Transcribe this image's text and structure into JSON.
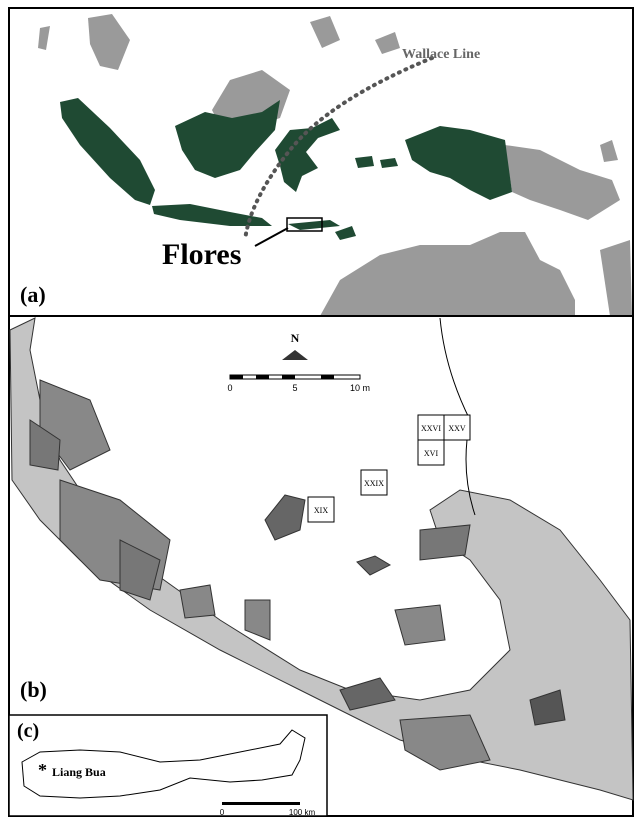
{
  "panel_a": {
    "label": "(a)",
    "wallace_line": "Wallace Line",
    "flores": "Flores"
  },
  "panel_b": {
    "label": "(b)",
    "north": "N",
    "scale_ticks": [
      "0",
      "5",
      "10 m"
    ],
    "squares": [
      "XXVI",
      "XXV",
      "XVI",
      "XXIX",
      "XIX"
    ]
  },
  "panel_c": {
    "label": "(c)",
    "site": "Liang Bua",
    "scale_ticks": [
      "0",
      "100 km"
    ]
  }
}
